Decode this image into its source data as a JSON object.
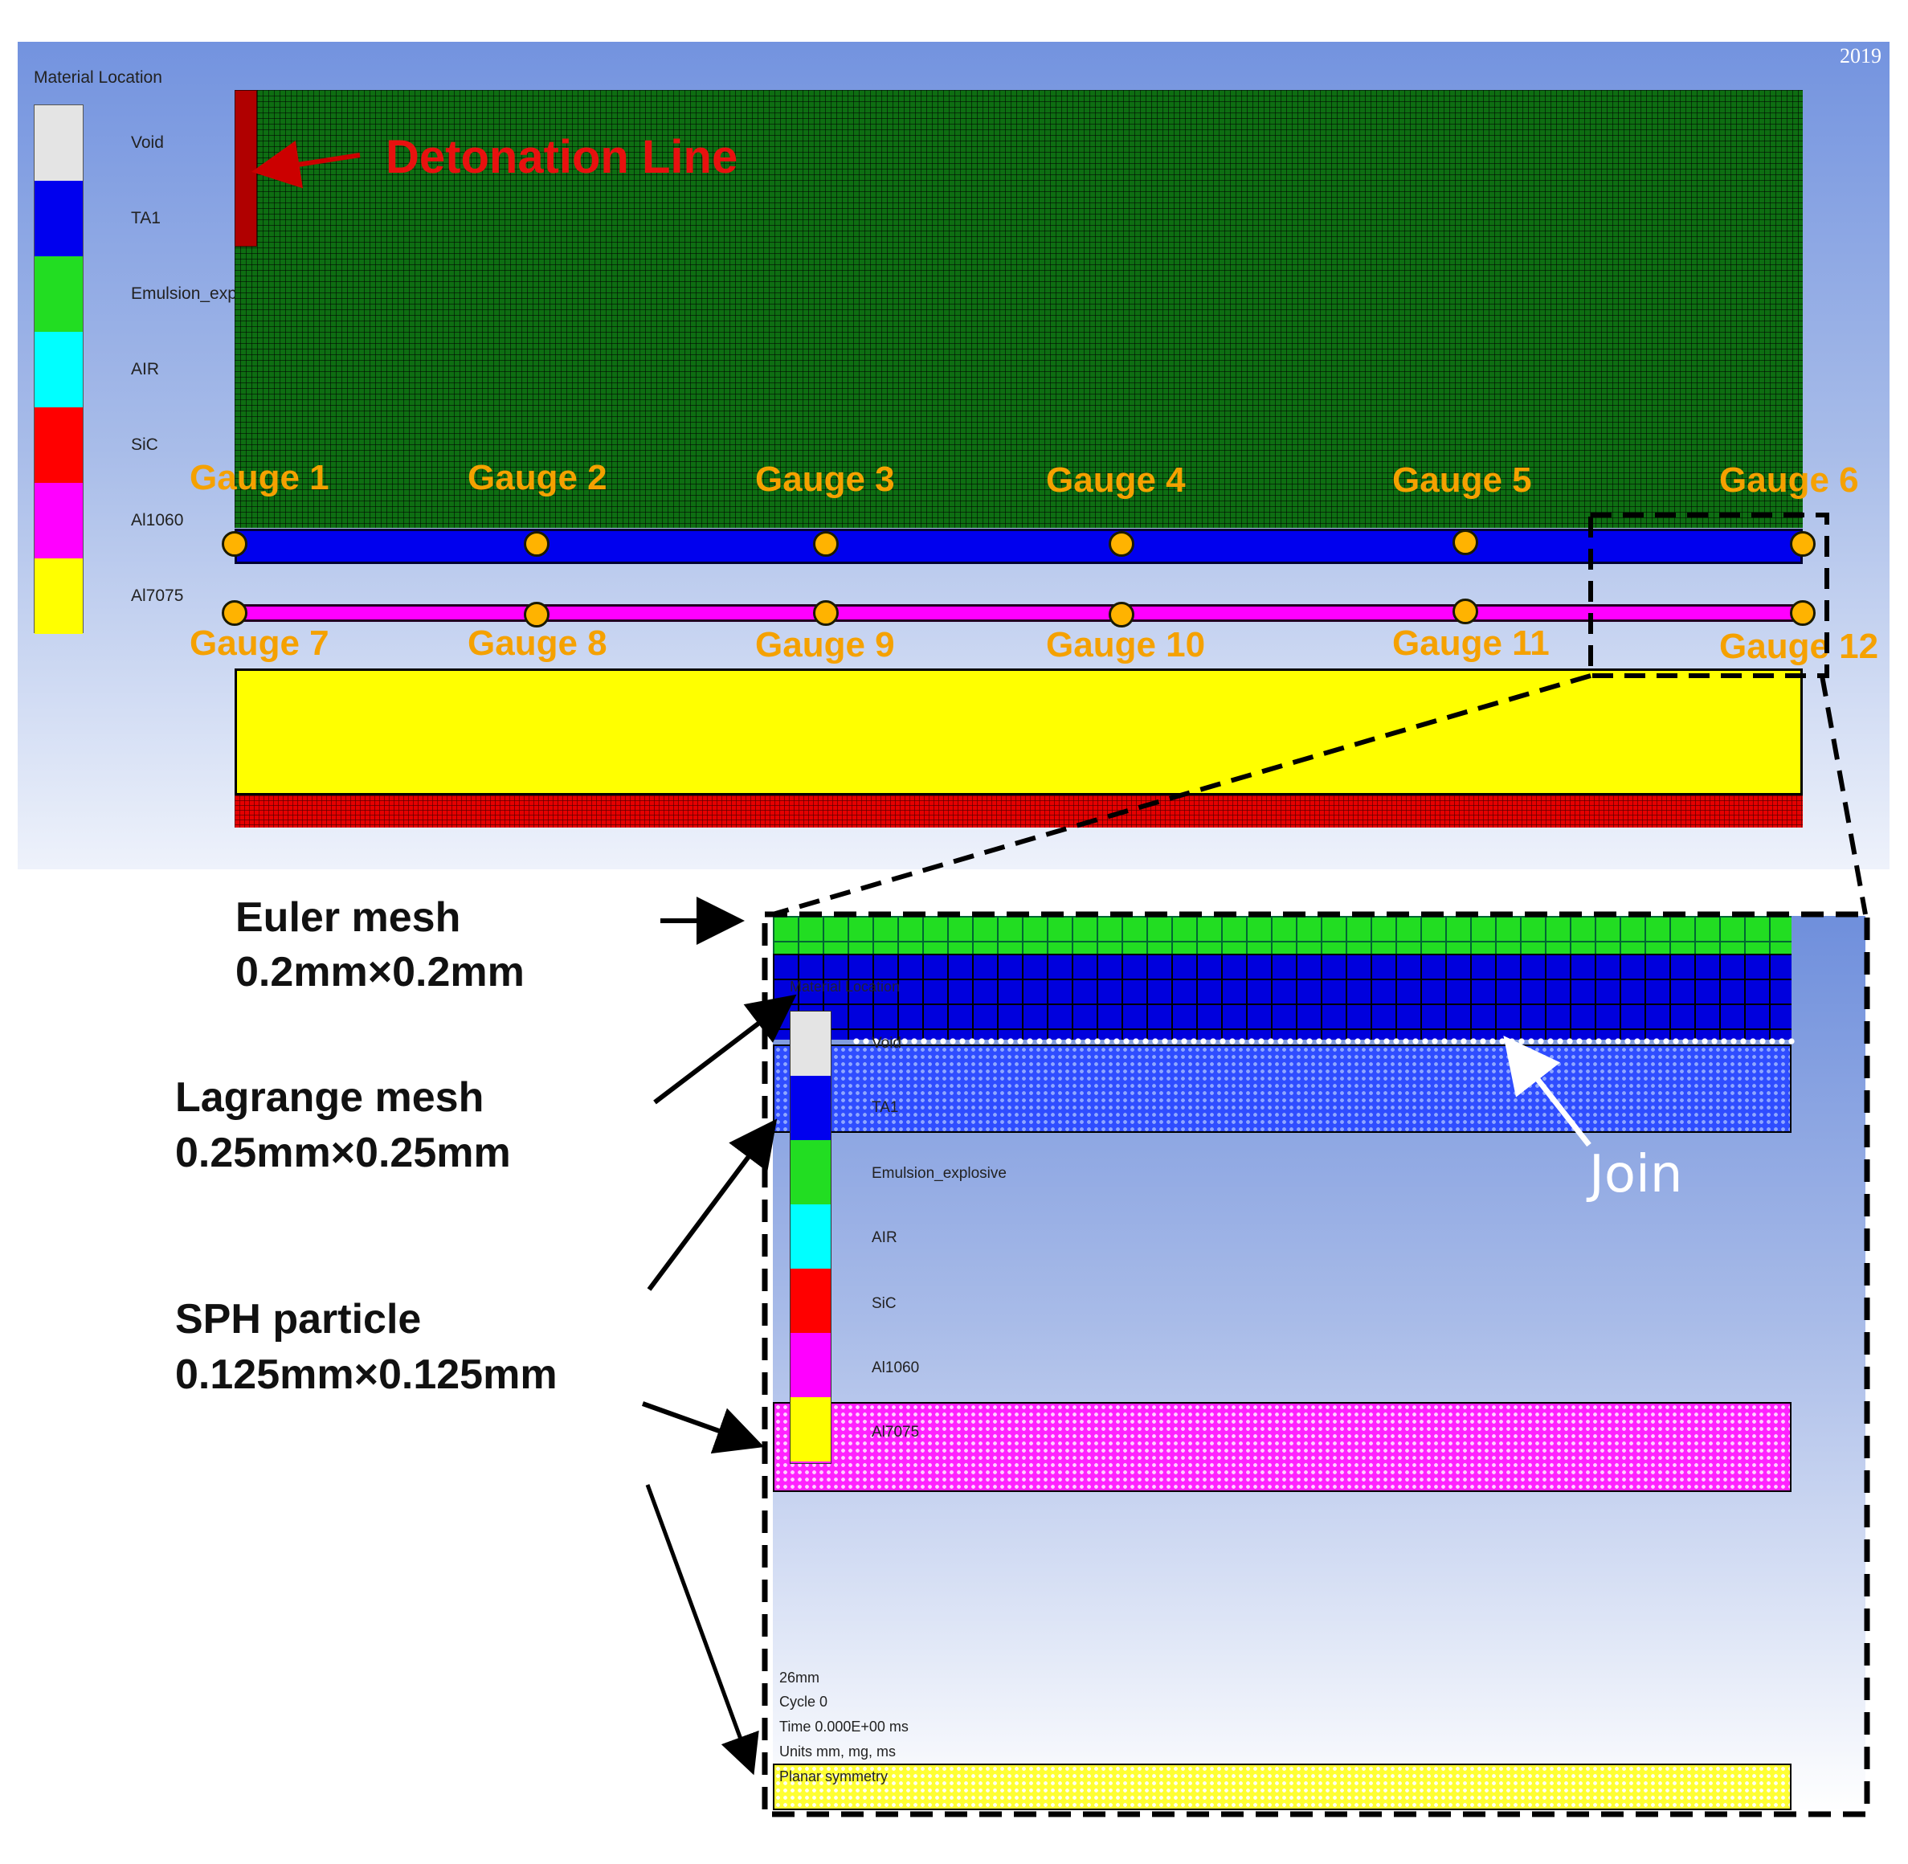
{
  "top": {
    "legend_title": "Material Location",
    "year_text": "2019",
    "legend": [
      {
        "label": "Void",
        "color": "#e4e4e4"
      },
      {
        "label": "TA1",
        "color": "#0000ee"
      },
      {
        "label": "Emulsion_explosive",
        "color": "#22dd22"
      },
      {
        "label": "AIR",
        "color": "#00ffff"
      },
      {
        "label": "SiC",
        "color": "#ff0000"
      },
      {
        "label": "Al1060",
        "color": "#ff00ff"
      },
      {
        "label": "Al7075",
        "color": "#ffff00"
      }
    ],
    "detonation_label": "Detonation Line",
    "gauges_top": [
      "Gauge 1",
      "Gauge 2",
      "Gauge 3",
      "Gauge 4",
      "Gauge 5",
      "Gauge 6"
    ],
    "gauges_bottom": [
      "Gauge 7",
      "Gauge 8",
      "Gauge 9",
      "Gauge 10",
      "Gauge 11",
      "Gauge 12"
    ]
  },
  "zoom": {
    "legend_title": "Material Location",
    "legend": [
      "Void",
      "TA1",
      "Emulsion_explosive",
      "AIR",
      "SiC",
      "Al1060",
      "Al7075"
    ],
    "join_label": "Join",
    "info": [
      "26mm",
      "Cycle 0",
      "Time 0.000E+00 ms",
      "Units mm, mg, ms",
      "Planar symmetry"
    ]
  },
  "annotations": {
    "euler_title": "Euler mesh",
    "euler_size": "0.2mm×0.2mm",
    "lagrange_title": "Lagrange mesh",
    "lagrange_size": "0.25mm×0.25mm",
    "sph_title": "SPH particle",
    "sph_size": "0.125mm×0.125mm"
  }
}
